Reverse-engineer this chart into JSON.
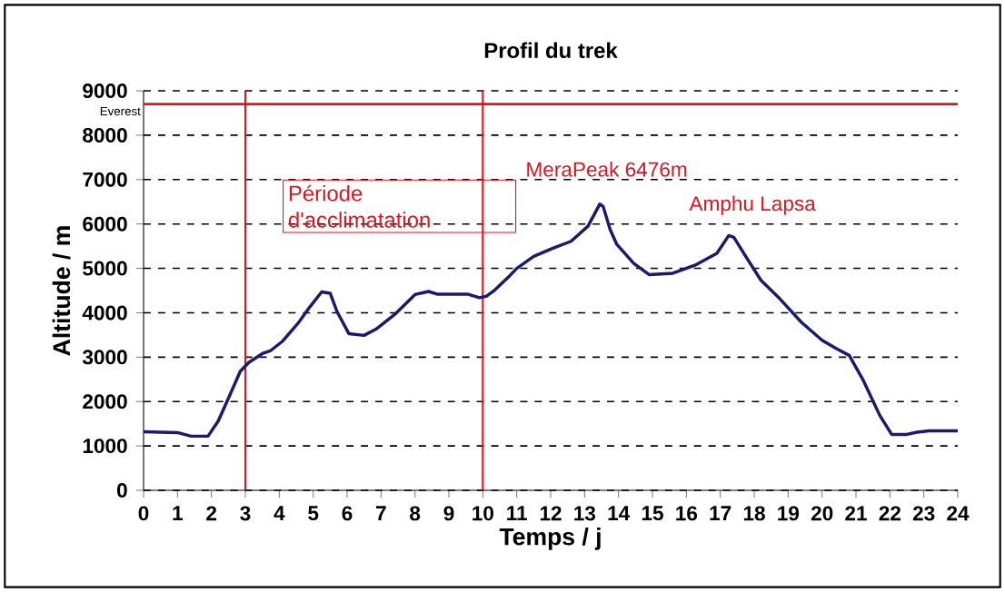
{
  "chart_data": {
    "type": "line",
    "title": "Profil du trek",
    "xlabel": "Temps / j",
    "ylabel": "Altitude / m",
    "x": [
      0,
      1,
      1.2,
      1.4,
      1.9,
      2.2,
      2.5,
      2.85,
      3.1,
      3.5,
      3.75,
      4.1,
      4.55,
      4.9,
      5.25,
      5.5,
      5.7,
      6.05,
      6.5,
      6.85,
      7.4,
      8.0,
      8.4,
      8.65,
      9.55,
      9.9,
      10.1,
      10.35,
      10.8,
      11.0,
      11.5,
      12.05,
      12.6,
      13.1,
      13.45,
      13.55,
      13.75,
      13.95,
      14.45,
      14.9,
      15.6,
      16.25,
      16.9,
      17.25,
      17.4,
      17.75,
      18.2,
      18.75,
      19.4,
      20.0,
      20.45,
      20.8,
      21.2,
      21.7,
      22.05,
      22.5,
      22.8,
      23.15,
      24
    ],
    "series": [
      {
        "color": "#1a1a6e",
        "values": [
          1320,
          1300,
          1260,
          1220,
          1220,
          1560,
          2070,
          2680,
          2880,
          3080,
          3150,
          3360,
          3760,
          4130,
          4470,
          4440,
          4030,
          3530,
          3490,
          3630,
          3960,
          4410,
          4480,
          4420,
          4420,
          4340,
          4370,
          4510,
          4840,
          5000,
          5270,
          5450,
          5610,
          5950,
          6450,
          6390,
          5880,
          5540,
          5110,
          4860,
          4890,
          5070,
          5340,
          5740,
          5700,
          5270,
          4730,
          4320,
          3780,
          3380,
          3180,
          3040,
          2500,
          1690,
          1260,
          1260,
          1310,
          1340,
          1340
        ]
      }
    ],
    "xlim": [
      0,
      24
    ],
    "xticks": [
      0,
      1,
      2,
      3,
      4,
      5,
      6,
      7,
      8,
      9,
      10,
      11,
      12,
      13,
      14,
      15,
      16,
      17,
      18,
      19,
      20,
      21,
      22,
      23,
      24
    ],
    "ylim": [
      0,
      9000
    ],
    "yticks": [
      0,
      1000,
      2000,
      3000,
      4000,
      5000,
      6000,
      7000,
      8000,
      9000
    ],
    "grid": "y",
    "marker": "none",
    "line_style": "solid",
    "ref_lines": [
      {
        "axis": "y",
        "value": 8700,
        "label": "Everest",
        "color": "#e0141e"
      },
      {
        "axis": "x",
        "value": 3,
        "color": "#e0141e"
      },
      {
        "axis": "x",
        "value": 10,
        "color": "#e0141e"
      }
    ],
    "annotations": [
      "Période d'acclimatation",
      {
        "text": "MeraPeak 6476m",
        "x": 13.45,
        "y": 6450
      },
      {
        "text": "Amphu Lapsa",
        "x": 17.25,
        "y": 5740
      }
    ]
  }
}
